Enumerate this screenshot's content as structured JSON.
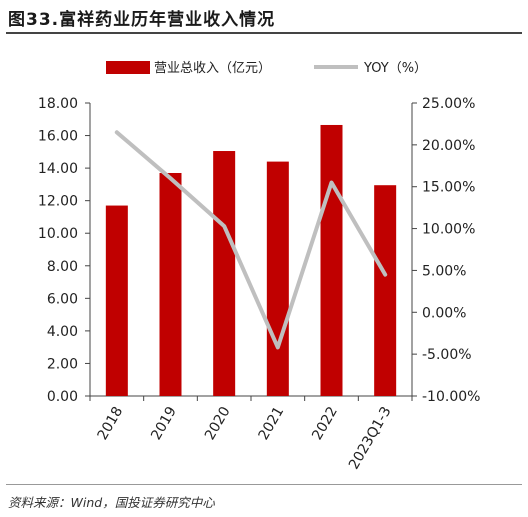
{
  "title": "图33.富祥药业历年营业收入情况",
  "source": "资料来源：Wind，国投证券研究中心",
  "colors": {
    "bar": "#c00000",
    "line": "#bfbfbf"
  },
  "chart_data": {
    "type": "bar",
    "categories": [
      "2018",
      "2019",
      "2020",
      "2021",
      "2022",
      "2023Q1-3"
    ],
    "series": [
      {
        "name": "营业总收入（亿元）",
        "type": "bar",
        "axis": "left",
        "values": [
          11.7,
          13.7,
          15.05,
          14.4,
          16.65,
          12.95
        ]
      },
      {
        "name": "YOY（%）",
        "type": "line",
        "axis": "right",
        "values": [
          21.5,
          16.0,
          10.3,
          -4.2,
          15.5,
          4.5
        ]
      }
    ],
    "left_axis": {
      "min": 0,
      "max": 18,
      "step": 2,
      "tick_labels": [
        "0.00",
        "2.00",
        "4.00",
        "6.00",
        "8.00",
        "10.00",
        "12.00",
        "14.00",
        "16.00",
        "18.00"
      ]
    },
    "right_axis": {
      "min": -10,
      "max": 25,
      "step": 5,
      "tick_labels": [
        "-10.00%",
        "-5.00%",
        "0.00%",
        "5.00%",
        "10.00%",
        "15.00%",
        "20.00%",
        "25.00%"
      ]
    },
    "legend_position": "top",
    "grid": false
  }
}
